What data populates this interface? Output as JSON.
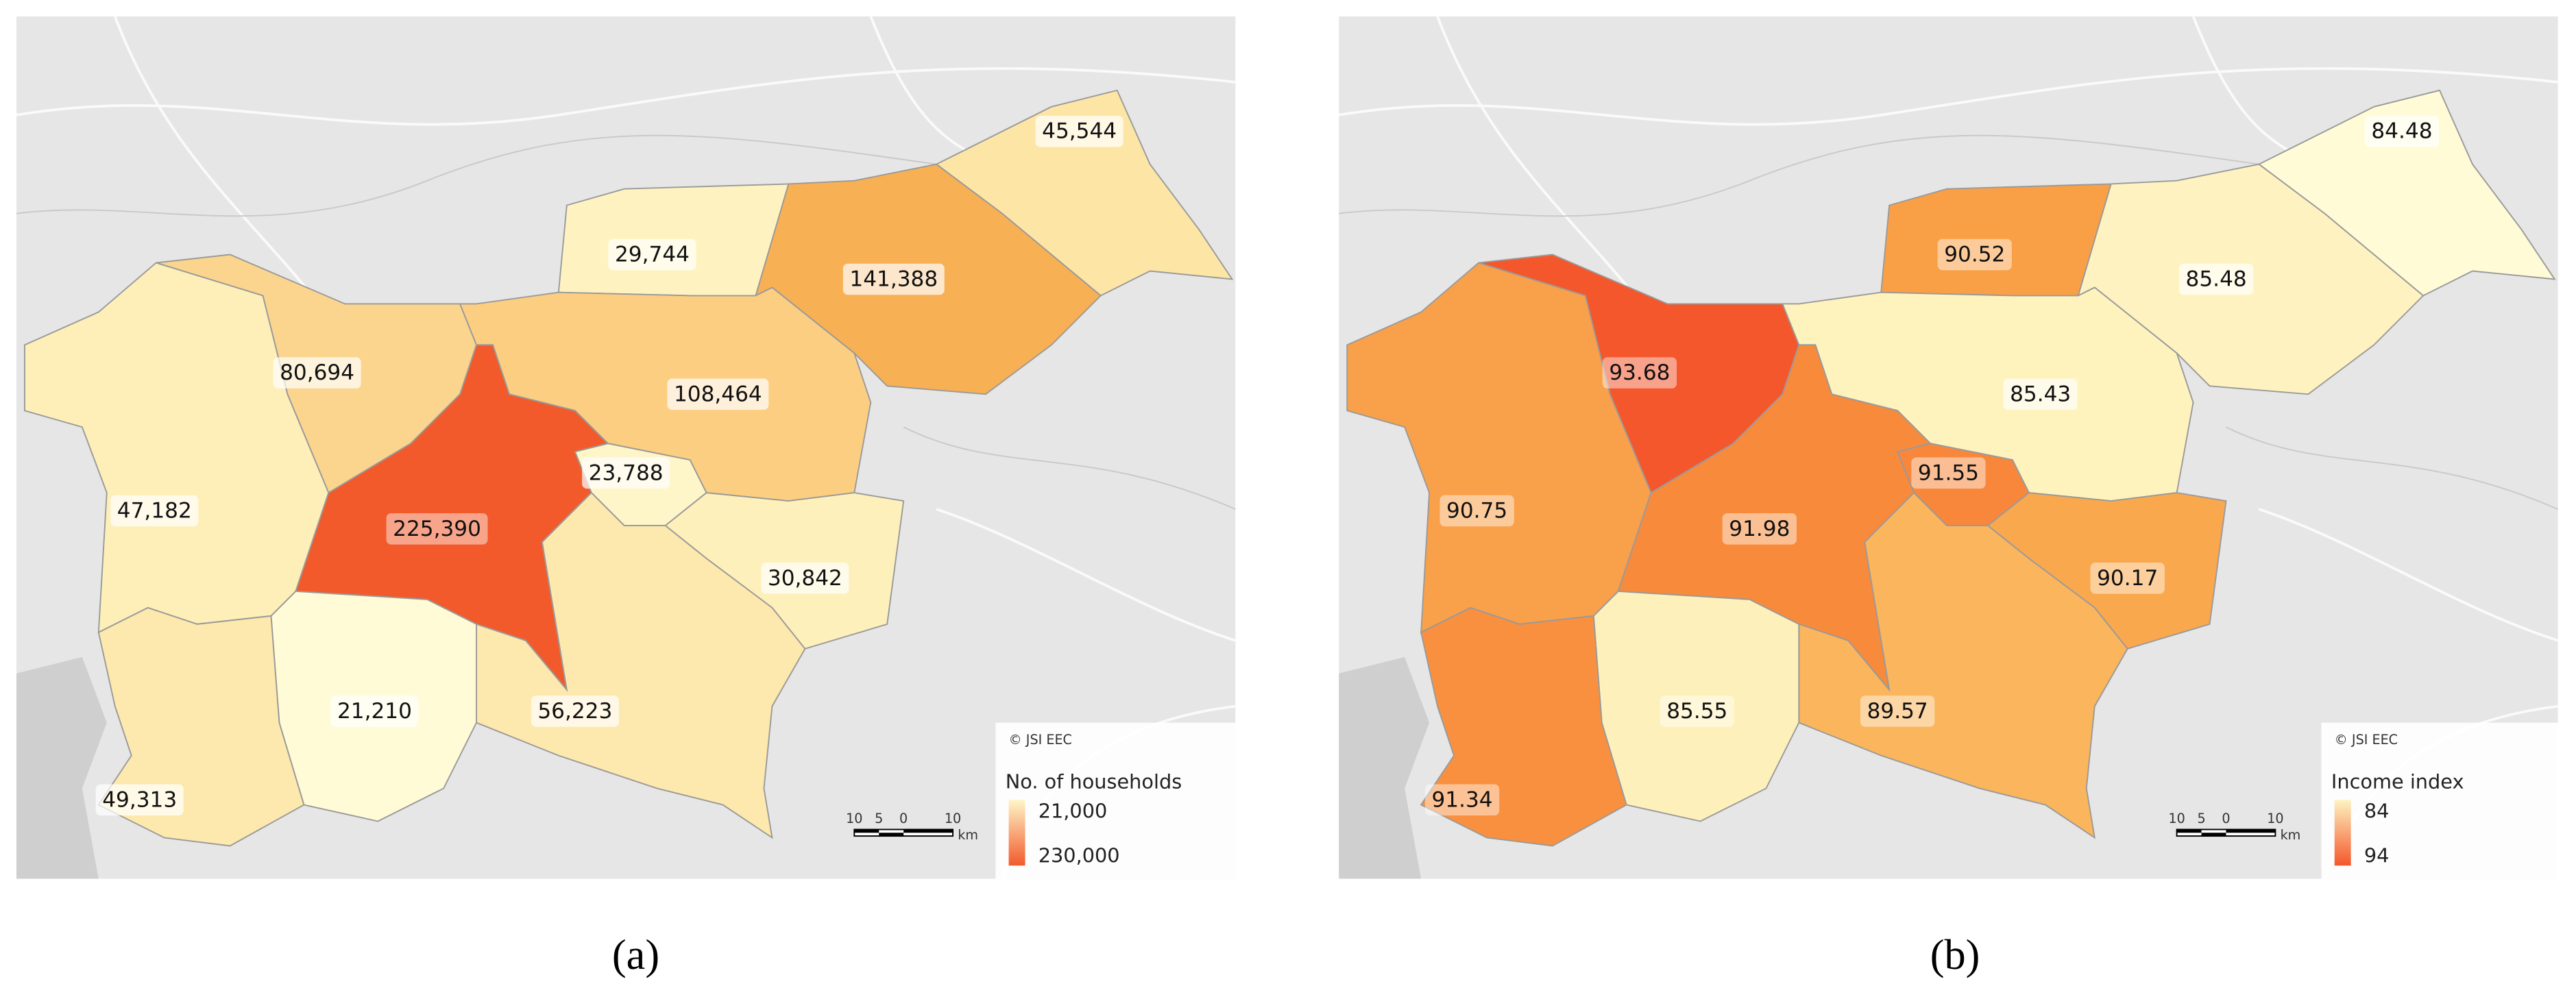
{
  "maps": [
    {
      "regions": [
        {
          "label": "45,544"
        },
        {
          "label": "29,744"
        },
        {
          "label": "141,388"
        },
        {
          "label": "80,694"
        },
        {
          "label": "108,464"
        },
        {
          "label": "23,788"
        },
        {
          "label": "47,182"
        },
        {
          "label": "225,390"
        },
        {
          "label": "30,842"
        },
        {
          "label": "21,210"
        },
        {
          "label": "56,223"
        },
        {
          "label": "49,313"
        }
      ],
      "copyright": "© JSI EEC",
      "legend": {
        "title": "No. of households",
        "min": "21,000",
        "max": "230,000"
      },
      "scale": {
        "labels": [
          "10",
          "5",
          "0",
          "10"
        ],
        "unit": "km"
      },
      "caption": "(a)"
    },
    {
      "regions": [
        {
          "label": "84.48"
        },
        {
          "label": "90.52"
        },
        {
          "label": "85.48"
        },
        {
          "label": "93.68"
        },
        {
          "label": "85.43"
        },
        {
          "label": "91.55"
        },
        {
          "label": "90.75"
        },
        {
          "label": "91.98"
        },
        {
          "label": "90.17"
        },
        {
          "label": "85.55"
        },
        {
          "label": "89.57"
        },
        {
          "label": "91.34"
        }
      ],
      "copyright": "© JSI EEC",
      "legend": {
        "title": "Income index",
        "min": "84",
        "max": "94"
      },
      "scale": {
        "labels": [
          "10",
          "5",
          "0",
          "10"
        ],
        "unit": "km"
      },
      "caption": "(b)"
    }
  ]
}
